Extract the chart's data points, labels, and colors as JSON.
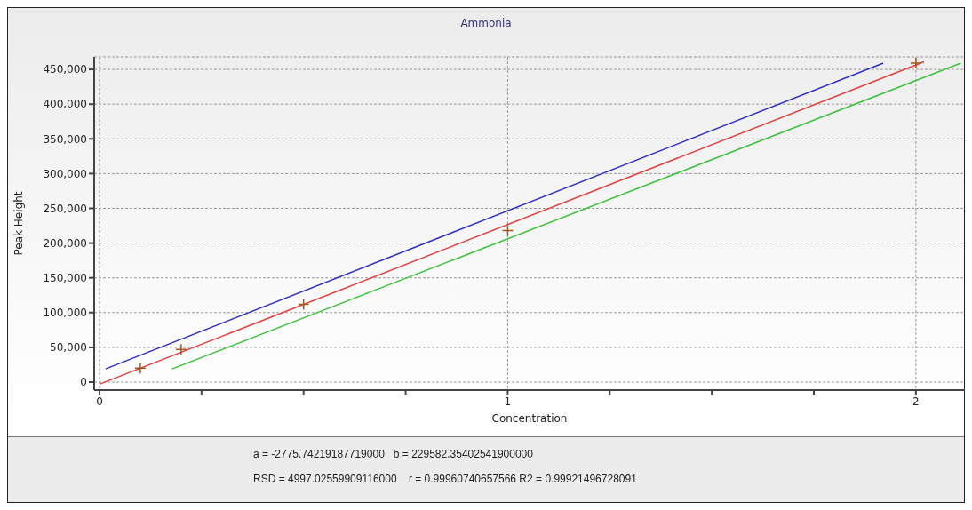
{
  "chart_data": {
    "type": "line",
    "title": "Ammonia",
    "xlabel": "Concentration",
    "ylabel": "Peak Height",
    "xlim": [
      -0.013,
      2.12
    ],
    "xticks": [
      0,
      {
        "value": 0.25,
        "label": null
      },
      {
        "value": 0.5,
        "label": null
      },
      {
        "value": 0.75,
        "label": null
      },
      1,
      {
        "value": 1.25,
        "label": null
      },
      {
        "value": 1.5,
        "label": null
      },
      {
        "value": 1.75,
        "label": null
      },
      2
    ],
    "ylim": [
      -11500,
      468000
    ],
    "yticks": [
      {
        "value": 0,
        "label": "0"
      },
      {
        "value": 50000,
        "label": "50,000"
      },
      {
        "value": 100000,
        "label": "100,000"
      },
      {
        "value": 150000,
        "label": "150,000"
      },
      {
        "value": 200000,
        "label": "200,000"
      },
      {
        "value": 250000,
        "label": "250,000"
      },
      {
        "value": 300000,
        "label": "300,000"
      },
      {
        "value": 350000,
        "label": "350,000"
      },
      {
        "value": 400000,
        "label": "400,000"
      },
      {
        "value": 450000,
        "label": "450,000"
      }
    ],
    "grid": true,
    "series": [
      {
        "color": "#3030c0",
        "x": [
          0.015,
          1.92
        ],
        "values": [
          19000,
          459000
        ]
      },
      {
        "color": "#e04040",
        "x": [
          0,
          2.02
        ],
        "values": [
          -3000,
          461000
        ]
      },
      {
        "color": "#40c040",
        "x": [
          0.178,
          2.11
        ],
        "values": [
          19000,
          459000
        ]
      },
      {
        "type": "scatter",
        "color": "#a05a1a",
        "marker": "cross",
        "x": [
          0.1,
          0.2,
          0.5,
          1,
          2
        ],
        "values": [
          20000,
          47000,
          112000,
          218000,
          459000
        ]
      }
    ],
    "annotations": [
      "a = -2775.74219187719000   b = 229582.35402541900000",
      "RSD = 4997.02559909116000    r = 0.99960740657566 R2 = 0.99921496728091"
    ]
  }
}
